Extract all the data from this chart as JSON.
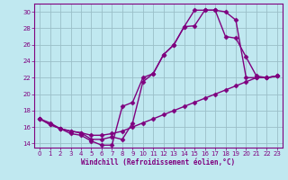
{
  "xlabel": "Windchill (Refroidissement éolien,°C)",
  "background_color": "#c0e8f0",
  "line_color": "#7f007f",
  "grid_color": "#9abfc8",
  "xlim": [
    -0.5,
    23.5
  ],
  "ylim": [
    13.5,
    31.0
  ],
  "yticks": [
    14,
    16,
    18,
    20,
    22,
    24,
    26,
    28,
    30
  ],
  "xticks": [
    0,
    1,
    2,
    3,
    4,
    5,
    6,
    7,
    8,
    9,
    10,
    11,
    12,
    13,
    14,
    15,
    16,
    17,
    18,
    19,
    20,
    21,
    22,
    23
  ],
  "line1_x": [
    0,
    1,
    2,
    3,
    4,
    5,
    6,
    7,
    8,
    9,
    10,
    11,
    12,
    13,
    14,
    15,
    16,
    17,
    18,
    19,
    20,
    21,
    22,
    23
  ],
  "line1_y": [
    17.0,
    16.5,
    15.8,
    15.5,
    15.3,
    15.0,
    15.0,
    15.2,
    15.5,
    16.0,
    16.5,
    17.0,
    17.5,
    18.0,
    18.5,
    19.0,
    19.5,
    20.0,
    20.5,
    21.0,
    21.5,
    22.0,
    22.0,
    22.2
  ],
  "line2_x": [
    0,
    1,
    2,
    3,
    4,
    5,
    6,
    7,
    8,
    9,
    10,
    11,
    12,
    13,
    14,
    15,
    16,
    17,
    18,
    19,
    20,
    21,
    22,
    23
  ],
  "line2_y": [
    17.0,
    16.3,
    15.8,
    15.2,
    15.0,
    14.3,
    13.8,
    13.8,
    18.5,
    19.0,
    22.0,
    22.5,
    24.8,
    26.0,
    28.2,
    28.3,
    30.2,
    30.2,
    27.0,
    26.8,
    24.5,
    22.2,
    22.0,
    22.2
  ],
  "line3_x": [
    0,
    1,
    2,
    3,
    4,
    5,
    6,
    7,
    8,
    9,
    10,
    11,
    12,
    13,
    14,
    15,
    16,
    17,
    18,
    19,
    20,
    21,
    22,
    23
  ],
  "line3_y": [
    17.0,
    16.3,
    15.8,
    15.5,
    15.3,
    14.5,
    14.5,
    14.8,
    14.5,
    16.5,
    21.5,
    22.5,
    24.8,
    26.0,
    28.2,
    30.2,
    30.2,
    30.2,
    30.0,
    29.0,
    22.0,
    22.0,
    22.0,
    22.2
  ],
  "marker": "D",
  "markersize": 2.5,
  "linewidth": 1.0
}
